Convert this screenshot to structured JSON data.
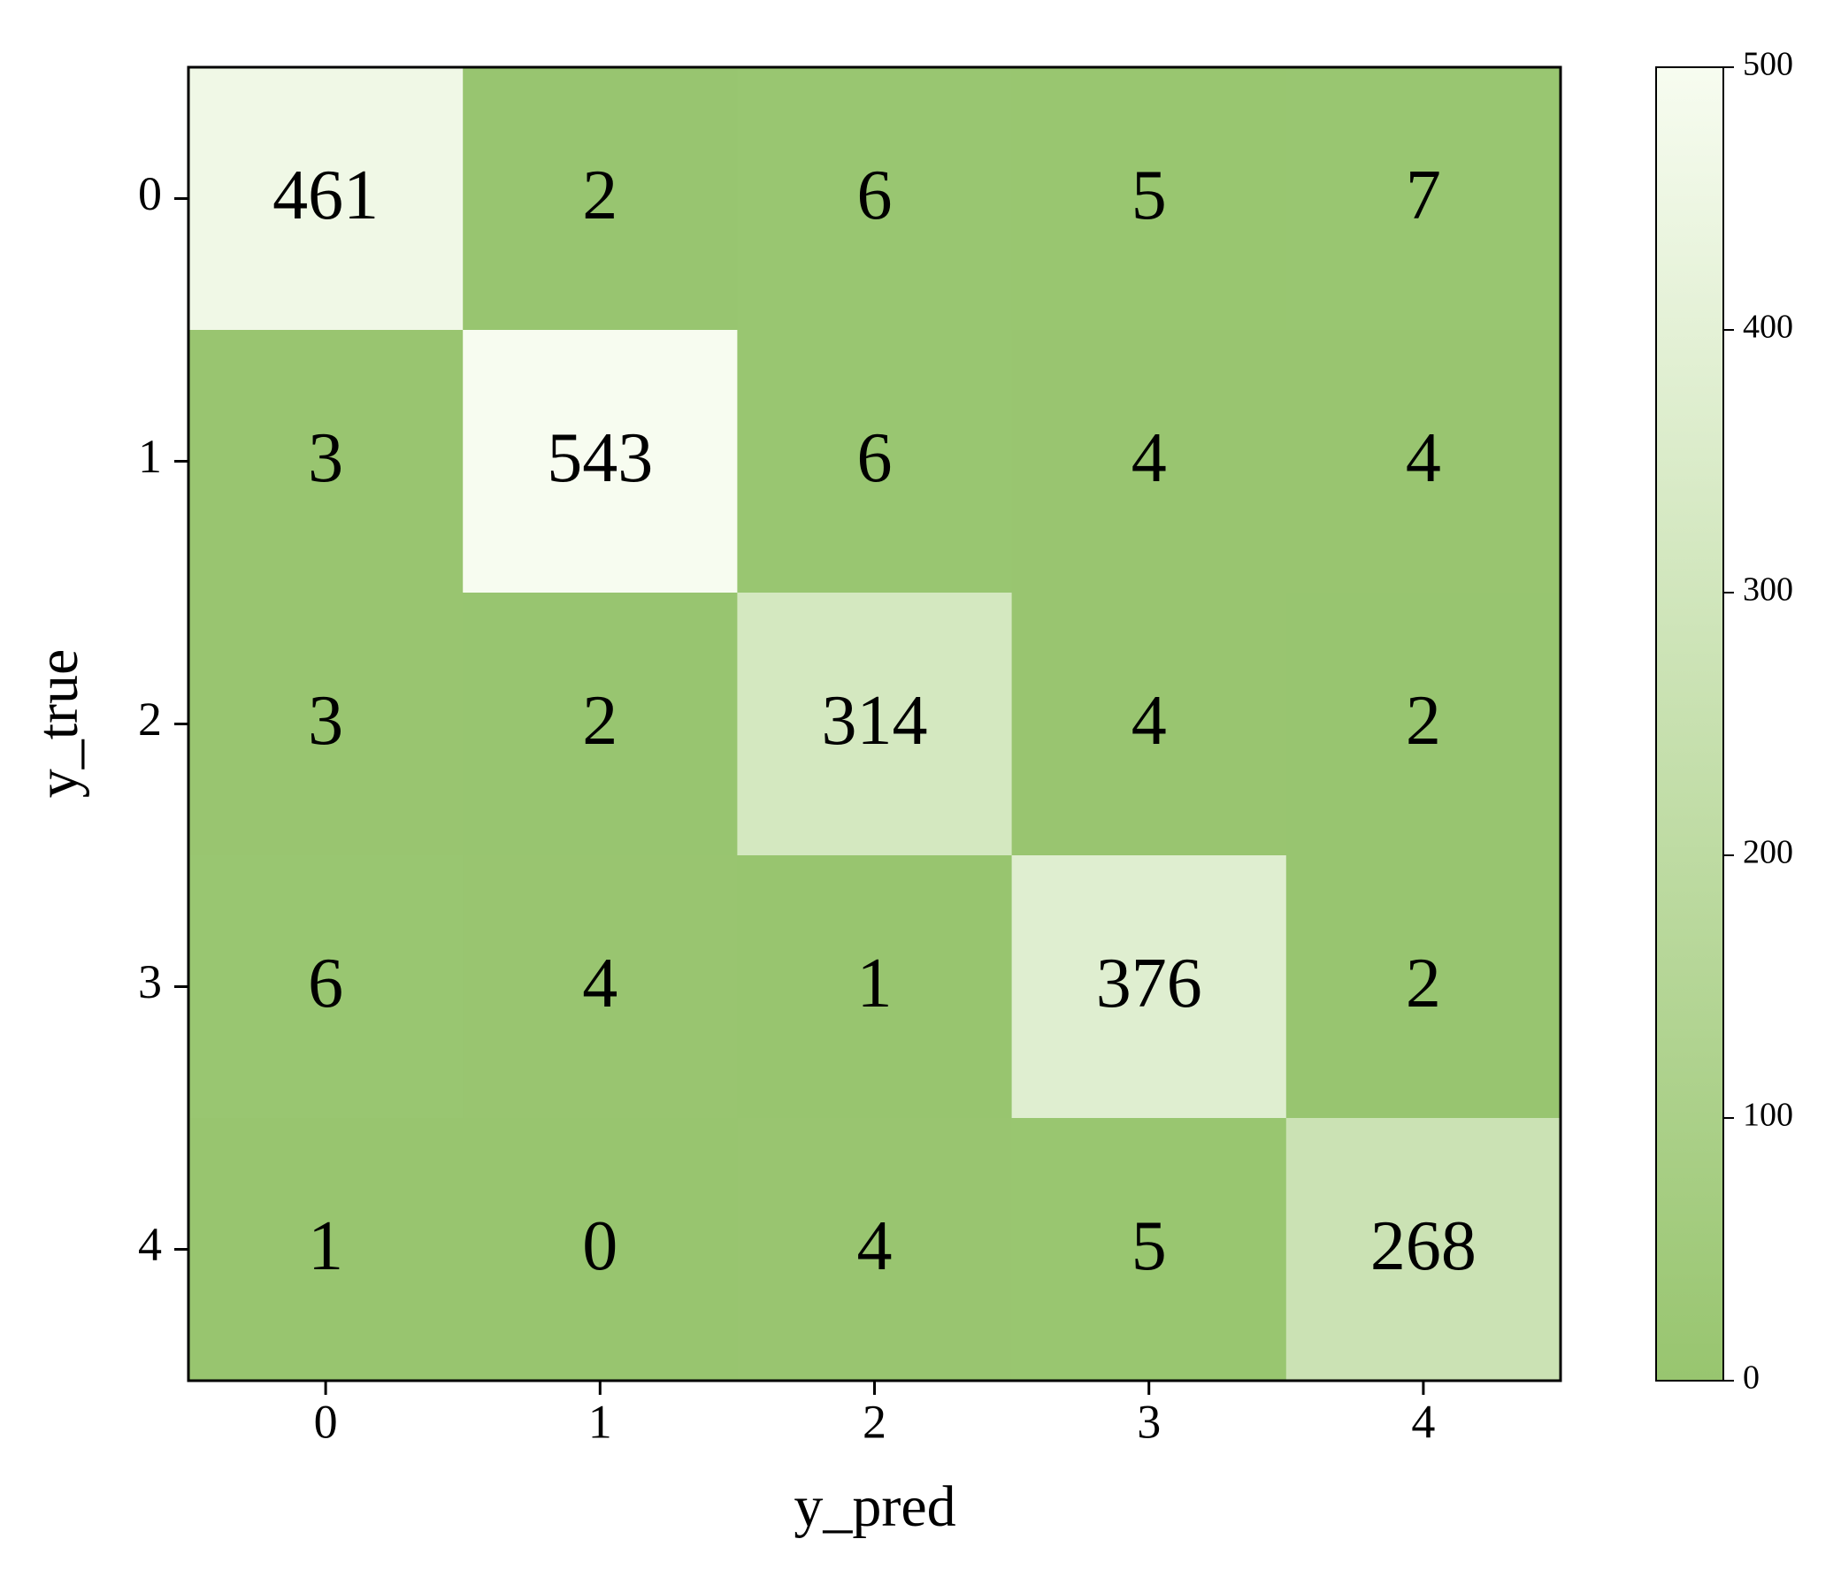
{
  "chart_data": {
    "type": "heatmap",
    "xlabel": "y_pred",
    "ylabel": "y_true",
    "x_categories": [
      "0",
      "1",
      "2",
      "3",
      "4"
    ],
    "y_categories": [
      "0",
      "1",
      "2",
      "3",
      "4"
    ],
    "values": [
      [
        461,
        2,
        6,
        5,
        7
      ],
      [
        3,
        543,
        6,
        4,
        4
      ],
      [
        3,
        2,
        314,
        4,
        2
      ],
      [
        6,
        4,
        1,
        376,
        2
      ],
      [
        1,
        0,
        4,
        5,
        268
      ]
    ],
    "colormap": [
      "#98c56f",
      "#f7fcf0"
    ],
    "clim": [
      0,
      500
    ],
    "cticks": [
      0,
      100,
      200,
      300,
      400,
      500
    ]
  }
}
